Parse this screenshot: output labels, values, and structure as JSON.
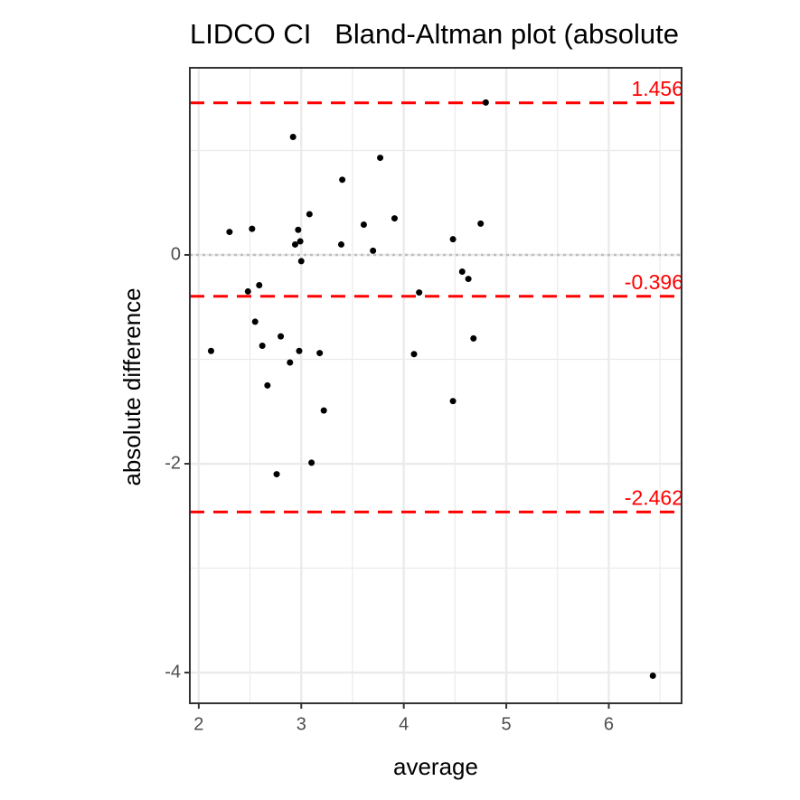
{
  "chart_data": {
    "type": "scatter",
    "title": "LIDCO CI   Bland-Altman plot (absolute",
    "x_label": "average",
    "y_label": "absolute difference",
    "x": [
      4.8,
      2.92,
      3.77,
      3.4,
      3.08,
      3.91,
      3.61,
      4.75,
      2.3,
      2.52,
      2.97,
      2.99,
      2.94,
      3.39,
      3.7,
      4.48,
      3.0,
      4.57,
      4.63,
      2.59,
      2.48,
      4.15,
      2.55,
      2.8,
      2.62,
      2.12,
      2.98,
      3.18,
      4.68,
      4.1,
      2.89,
      2.67,
      4.48,
      3.22,
      3.1,
      2.76,
      6.43
    ],
    "values": [
      1.46,
      1.13,
      0.93,
      0.72,
      0.39,
      0.35,
      0.29,
      0.3,
      0.22,
      0.25,
      0.24,
      0.13,
      0.1,
      0.1,
      0.04,
      0.15,
      -0.06,
      -0.16,
      -0.23,
      -0.29,
      -0.35,
      -0.36,
      -0.64,
      -0.78,
      -0.87,
      -0.92,
      -0.92,
      -0.94,
      -0.8,
      -0.95,
      -1.03,
      -1.25,
      -1.4,
      -1.49,
      -1.99,
      -2.1,
      -4.03
    ],
    "color": "#000000",
    "xlim": [
      1.913,
      6.71
    ],
    "ylim": [
      -4.294,
      1.792
    ],
    "xticks": [
      2,
      3,
      4,
      5,
      6
    ],
    "yticks": [
      -4,
      -2,
      0
    ],
    "minor_xticks": [
      2.5,
      3.5,
      4.5,
      5.5,
      6.5
    ],
    "minor_yticks": [
      -3,
      -1,
      1
    ],
    "grid": true,
    "limits": {
      "values": [
        1.456,
        -0.396,
        -2.462
      ],
      "color": "#ff0000"
    },
    "zero_line": {
      "value": 0,
      "color": "#bebebe"
    }
  }
}
